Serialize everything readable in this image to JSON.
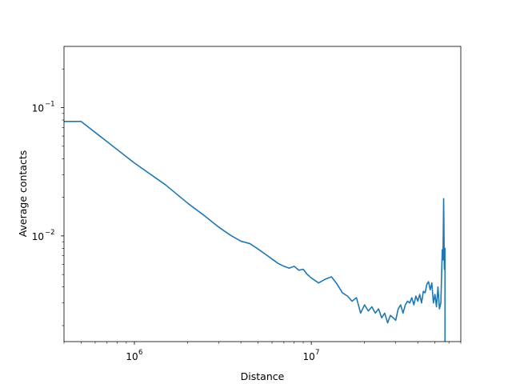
{
  "chart_data": {
    "type": "line",
    "title": "",
    "xlabel": "Distance",
    "ylabel": "Average contacts",
    "x_scale": "log",
    "y_scale": "log",
    "xlim": [
      400000,
      70000000
    ],
    "ylim": [
      0.0015,
      0.3
    ],
    "grid": false,
    "legend": "none",
    "colors": {
      "line": "#1f77b4",
      "axes": "#000000"
    },
    "x_ticks": [
      {
        "value": 1000000,
        "base": "10",
        "exp": "6"
      },
      {
        "value": 10000000,
        "base": "10",
        "exp": "7"
      }
    ],
    "y_ticks": [
      {
        "value": 0.1,
        "base": "10",
        "exp": "−1"
      },
      {
        "value": 0.01,
        "base": "10",
        "exp": "−2"
      }
    ],
    "series": [
      {
        "x": [
          400000,
          500000,
          1000000,
          1500000,
          2000000,
          2500000,
          3000000,
          3500000,
          4000000,
          4500000,
          5000000,
          5500000,
          6000000,
          6500000,
          7000000,
          7500000,
          8000000,
          8500000,
          9000000,
          9500000,
          10000000,
          11000000,
          12000000,
          13000000,
          14000000,
          15000000,
          16000000,
          17000000,
          18000000,
          19000000,
          20000000,
          21000000,
          22000000,
          23000000,
          24000000,
          25000000,
          26000000,
          27000000,
          28000000,
          29000000,
          30000000,
          31000000,
          32000000,
          33000000,
          34000000,
          35000000,
          36000000,
          37000000,
          38000000,
          39000000,
          40000000,
          41000000,
          42000000,
          43000000,
          44000000,
          45000000,
          46000000,
          47000000,
          48000000,
          49000000,
          50000000,
          51000000,
          52000000,
          53000000,
          54000000,
          55000000,
          55500000,
          56000000,
          56500000,
          57000000,
          57000000
        ],
        "y": [
          0.078,
          0.078,
          0.037,
          0.025,
          0.018,
          0.0143,
          0.0117,
          0.0101,
          0.0091,
          0.0087,
          0.0079,
          0.0072,
          0.0066,
          0.0061,
          0.0058,
          0.0056,
          0.0058,
          0.0054,
          0.0055,
          0.005,
          0.0047,
          0.0043,
          0.0046,
          0.0048,
          0.0042,
          0.0036,
          0.0034,
          0.0031,
          0.0033,
          0.0025,
          0.0029,
          0.0026,
          0.0028,
          0.0025,
          0.0027,
          0.0023,
          0.0025,
          0.0021,
          0.0024,
          0.0023,
          0.0022,
          0.0027,
          0.0029,
          0.0025,
          0.0029,
          0.0031,
          0.003,
          0.0033,
          0.0029,
          0.0034,
          0.0031,
          0.0035,
          0.003,
          0.0037,
          0.0036,
          0.0042,
          0.0044,
          0.0038,
          0.0043,
          0.003,
          0.0035,
          0.0028,
          0.004,
          0.0027,
          0.003,
          0.0078,
          0.0065,
          0.0195,
          0.0055,
          0.008,
          0.0012
        ]
      }
    ]
  }
}
